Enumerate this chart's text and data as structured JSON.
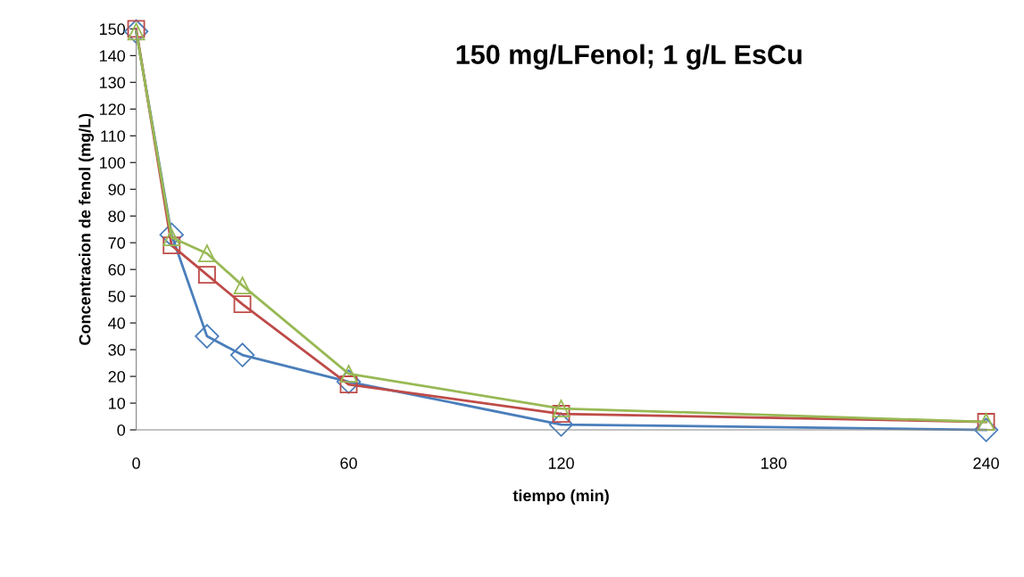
{
  "chart_data": {
    "type": "line",
    "title": "150 mg/LFenol; 1 g/L EsCu",
    "xlabel": "tiempo (min)",
    "ylabel": "Concentracion de fenol (mg/L)",
    "x": [
      0,
      10,
      20,
      30,
      60,
      120,
      240
    ],
    "series": [
      {
        "color": "#4a7ebb",
        "marker": "diamond",
        "values": [
          149,
          73,
          35,
          28,
          18,
          2,
          0
        ]
      },
      {
        "color": "#be4b48",
        "marker": "square",
        "values": [
          150,
          69,
          58,
          47,
          17,
          6,
          3
        ]
      },
      {
        "color": "#98b954",
        "marker": "triangle",
        "values": [
          149,
          72,
          66,
          54,
          21,
          8,
          3
        ]
      }
    ],
    "xlim": [
      0,
      240
    ],
    "xticks": [
      0,
      60,
      120,
      180,
      240
    ],
    "ylim": [
      0,
      150
    ],
    "yticks": [
      0,
      10,
      20,
      30,
      40,
      50,
      60,
      70,
      80,
      90,
      100,
      110,
      120,
      130,
      140,
      150
    ],
    "grid": false,
    "legend": false,
    "line_style": "solid"
  }
}
